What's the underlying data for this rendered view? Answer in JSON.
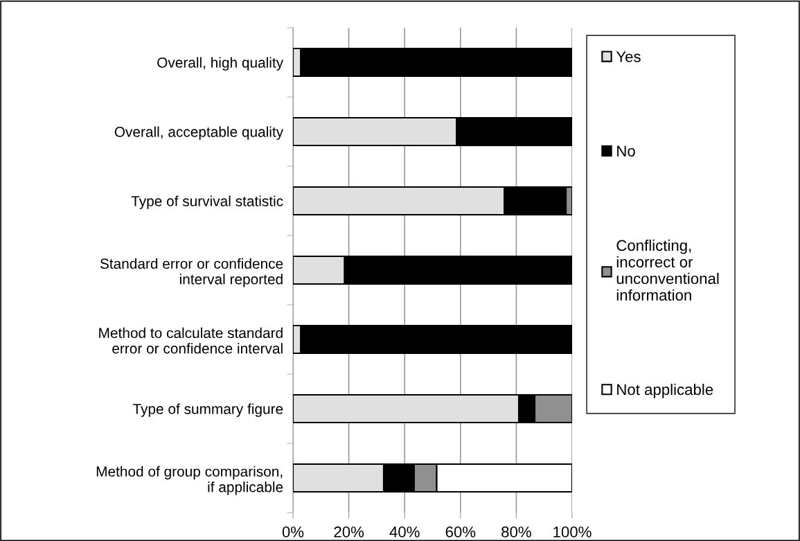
{
  "chart_data": {
    "type": "bar",
    "orientation": "horizontal",
    "stacked": true,
    "categories": [
      "Overall, high quality",
      "Overall, acceptable quality",
      "Type of survival statistic",
      "Standard error or confidence\ninterval reported",
      "Method to calculate standard\nerror or confidence interval",
      "Type of summary figure",
      "Method of group comparison,\nif applicable"
    ],
    "series": [
      {
        "name": "Yes",
        "color": "#e0e0e0",
        "values": [
          2.8,
          58.6,
          75.7,
          18.5,
          2.8,
          80.9,
          32.5
        ]
      },
      {
        "name": "No",
        "color": "#000000",
        "values": [
          97.2,
          41.4,
          22.1,
          81.0,
          96.7,
          5.7,
          10.9
        ]
      },
      {
        "name": "Conflicting,\nincorrect or\nunconventional\ninformation",
        "color": "#909090",
        "values": [
          null,
          null,
          2.2,
          0.5,
          0.5,
          13.4,
          8.1
        ]
      },
      {
        "name": "Not applicable",
        "color": "#ffffff",
        "values": [
          null,
          null,
          null,
          null,
          null,
          null,
          48.5
        ]
      }
    ],
    "xlim": [
      0,
      100
    ],
    "xticks": [
      {
        "value": 0,
        "label": "0%"
      },
      {
        "value": 20,
        "label": "20%"
      },
      {
        "value": 40,
        "label": "40%"
      },
      {
        "value": 60,
        "label": "60%"
      },
      {
        "value": 80,
        "label": "80%"
      },
      {
        "value": 100,
        "label": "100%"
      }
    ],
    "grid": "x",
    "legend": "right"
  }
}
